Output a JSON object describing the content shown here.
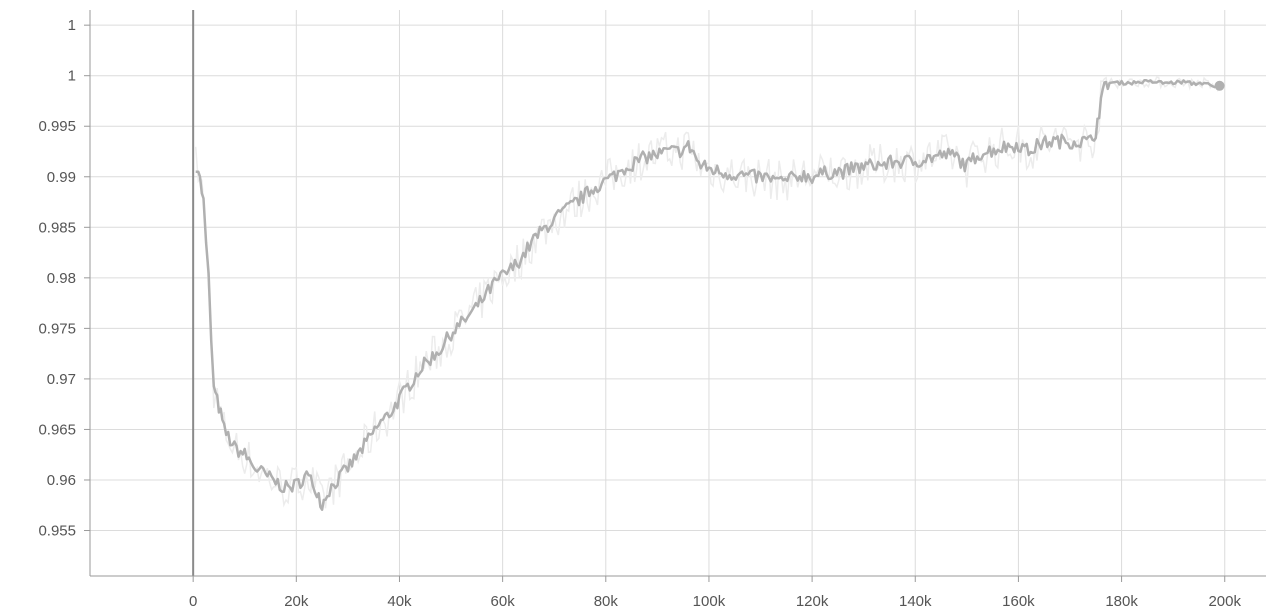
{
  "chart_data": {
    "type": "line",
    "title": "",
    "xlabel": "",
    "ylabel": "",
    "xlim": [
      -20000,
      208000
    ],
    "ylim": [
      0.9505,
      1.0065
    ],
    "x_ticks": [
      0,
      20000,
      40000,
      60000,
      80000,
      100000,
      120000,
      140000,
      160000,
      180000,
      200000
    ],
    "x_tick_labels": [
      "0",
      "20k",
      "40k",
      "60k",
      "80k",
      "100k",
      "120k",
      "140k",
      "160k",
      "180k",
      "200k"
    ],
    "y_ticks": [
      0.955,
      0.96,
      0.965,
      0.97,
      0.975,
      0.98,
      0.985,
      0.99,
      0.995,
      1.0,
      1.005
    ],
    "y_tick_labels": [
      "0.955",
      "0.96",
      "0.965",
      "0.97",
      "0.975",
      "0.98",
      "0.985",
      "0.99",
      "0.995",
      "1",
      "1"
    ],
    "grid": true,
    "legend": "none",
    "smoothed_color": "#b0b0b0",
    "raw_color": "#ececec",
    "series": [
      {
        "x": [
          500,
          1000,
          2000,
          2500,
          3000,
          3500,
          4000,
          5000,
          6000,
          8000,
          10000,
          12000,
          14000,
          16000,
          18000,
          20000,
          22000,
          24000,
          25000,
          26000,
          28000,
          30000,
          32000,
          34000,
          36000,
          38000,
          40000,
          42000,
          44000,
          46000,
          48000,
          50000,
          52000,
          54000,
          56000,
          58000,
          60000,
          62000,
          64000,
          66000,
          68000,
          70000,
          72000,
          74000,
          76000,
          78000,
          80000,
          82000,
          84000,
          86000,
          88000,
          90000,
          92000,
          94000,
          96000,
          97000,
          98000,
          100000,
          102000,
          104000,
          106000,
          108000,
          110000,
          112000,
          114000,
          116000,
          118000,
          120000,
          122000,
          124000,
          126000,
          128000,
          130000,
          132000,
          134000,
          136000,
          138000,
          140000,
          142000,
          144000,
          146000,
          148000,
          150000,
          152000,
          154000,
          156000,
          158000,
          160000,
          162000,
          164000,
          166000,
          168000,
          170000,
          172000,
          174000,
          175000,
          176000,
          177000,
          178000,
          180000,
          182000,
          184000,
          186000,
          188000,
          190000,
          192000,
          194000,
          196000,
          198000,
          199000
        ],
        "y": [
          0.9912,
          0.9908,
          0.9875,
          0.9832,
          0.98,
          0.974,
          0.969,
          0.9672,
          0.965,
          0.9632,
          0.9625,
          0.9612,
          0.9605,
          0.9598,
          0.9592,
          0.9595,
          0.9605,
          0.959,
          0.9575,
          0.9588,
          0.96,
          0.9612,
          0.9625,
          0.964,
          0.9655,
          0.9665,
          0.968,
          0.9695,
          0.971,
          0.972,
          0.973,
          0.9745,
          0.9755,
          0.9765,
          0.9778,
          0.9792,
          0.9802,
          0.981,
          0.9822,
          0.9838,
          0.9848,
          0.9858,
          0.9866,
          0.9874,
          0.9882,
          0.989,
          0.9896,
          0.9902,
          0.991,
          0.9915,
          0.992,
          0.9922,
          0.9925,
          0.9925,
          0.993,
          0.9925,
          0.9912,
          0.9908,
          0.9905,
          0.9903,
          0.9902,
          0.99,
          0.99,
          0.9898,
          0.9895,
          0.9898,
          0.9902,
          0.99,
          0.9903,
          0.9905,
          0.9905,
          0.9908,
          0.991,
          0.9912,
          0.9912,
          0.9915,
          0.9915,
          0.9915,
          0.9918,
          0.992,
          0.9922,
          0.992,
          0.991,
          0.9922,
          0.9925,
          0.9928,
          0.993,
          0.9932,
          0.9925,
          0.9932,
          0.9935,
          0.9935,
          0.9935,
          0.9935,
          0.9935,
          0.9945,
          0.9975,
          0.9993,
          0.9993,
          0.9993,
          0.9993,
          0.9994,
          0.9994,
          0.9993,
          0.9993,
          0.9994,
          0.9992,
          0.9993,
          0.9988,
          0.999
        ]
      }
    ]
  }
}
